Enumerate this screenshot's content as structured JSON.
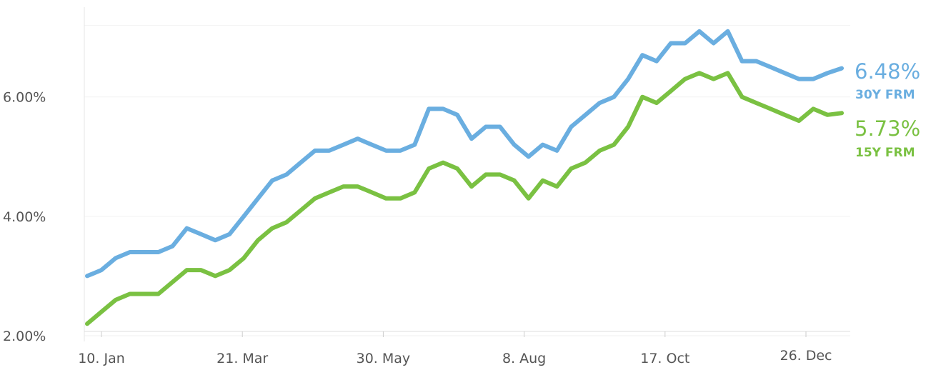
{
  "chart_data": {
    "type": "line",
    "title": "",
    "xlabel": "",
    "ylabel": "",
    "ylim": [
      2,
      7.6
    ],
    "y_ticks": [
      "2.00%",
      "4.00%",
      "6.00%"
    ],
    "x_ticks": [
      "10. Jan",
      "21. Mar",
      "30. May",
      "8. Aug",
      "17. Oct",
      "26. Dec"
    ],
    "grid": "horizontal",
    "series": [
      {
        "name": "30Y FRM",
        "color": "#6aaee0",
        "end_label": "6.48%",
        "values": [
          3.0,
          3.1,
          3.3,
          3.4,
          3.4,
          3.4,
          3.5,
          3.8,
          3.7,
          3.6,
          3.7,
          4.0,
          4.3,
          4.6,
          4.7,
          4.9,
          5.1,
          5.1,
          5.2,
          5.3,
          5.2,
          5.1,
          5.1,
          5.2,
          5.8,
          5.8,
          5.7,
          5.3,
          5.5,
          5.5,
          5.2,
          5.0,
          5.2,
          5.1,
          5.5,
          5.7,
          5.9,
          6.0,
          6.3,
          6.7,
          6.6,
          6.9,
          6.9,
          7.1,
          6.9,
          7.1,
          6.6,
          6.6,
          6.5,
          6.4,
          6.3,
          6.3,
          6.4,
          6.48
        ]
      },
      {
        "name": "15Y FRM",
        "color": "#7ac142",
        "end_label": "5.73%",
        "values": [
          2.2,
          2.4,
          2.6,
          2.7,
          2.7,
          2.7,
          2.9,
          3.1,
          3.1,
          3.0,
          3.1,
          3.3,
          3.6,
          3.8,
          3.9,
          4.1,
          4.3,
          4.4,
          4.5,
          4.5,
          4.4,
          4.3,
          4.3,
          4.4,
          4.8,
          4.9,
          4.8,
          4.5,
          4.7,
          4.7,
          4.6,
          4.3,
          4.6,
          4.5,
          4.8,
          4.9,
          5.1,
          5.2,
          5.5,
          6.0,
          5.9,
          6.1,
          6.3,
          6.4,
          6.3,
          6.4,
          6.0,
          5.9,
          5.8,
          5.7,
          5.6,
          5.8,
          5.7,
          5.73
        ]
      }
    ]
  }
}
